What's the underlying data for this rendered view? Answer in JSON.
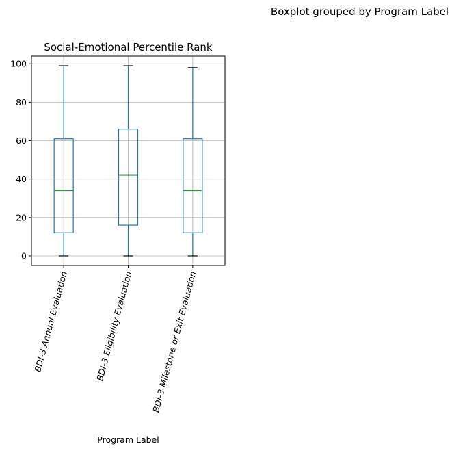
{
  "figure": {
    "suptitle": "Boxplot grouped by Program Label"
  },
  "chart_data": {
    "type": "box",
    "title": "Social-Emotional Percentile Rank",
    "xlabel": "Program Label",
    "ylabel": "",
    "categories": [
      "BDI-3 Annual Evaluation",
      "BDI-3 Eligibility Evaluation",
      "BDI-3 Milestone or Exit Evaluation"
    ],
    "boxes": [
      {
        "whislo": 0,
        "q1": 12,
        "med": 34,
        "q3": 61,
        "whishi": 99
      },
      {
        "whislo": 0,
        "q1": 16,
        "med": 42,
        "q3": 66,
        "whishi": 99
      },
      {
        "whislo": 0,
        "q1": 12,
        "med": 34,
        "q3": 61,
        "whishi": 98
      }
    ],
    "ylim": [
      -5,
      104
    ],
    "yticks": [
      0,
      20,
      40,
      60,
      80,
      100
    ],
    "grid": true,
    "colors": {
      "box": "#1f77b4",
      "median": "#2ca02c",
      "whisker": "#1f77b4",
      "cap": "#000000",
      "grid": "#b0b0b0"
    }
  }
}
